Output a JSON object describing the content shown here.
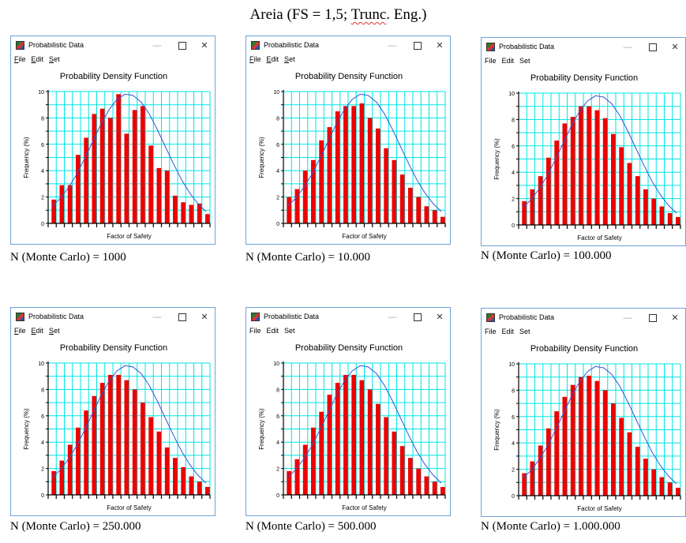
{
  "figure_title": "Areia (FS = 1,5; Trunc. Eng.)",
  "figure_title_prefix": "Areia (FS = 1,5; ",
  "figure_title_squiggle": "Trunc",
  "figure_title_suffix": ". Eng.)",
  "window": {
    "title": "Probabilistic Data",
    "menu": [
      "File",
      "Edit",
      "Set"
    ]
  },
  "colors": {
    "bar": "#ee0000",
    "grid": "#00e5e5",
    "curve": "#3355dd",
    "window_border": "#6fa3d8"
  },
  "chart_data": [
    {
      "type": "bar",
      "title": "Probability Density Function",
      "xlabel": "Factor of Safety",
      "ylabel": "Frequency (%)",
      "ylim": [
        0,
        10
      ],
      "yticks": [
        "0",
        "2",
        "4",
        "6",
        "8",
        "10"
      ],
      "values": [
        1.8,
        2.9,
        2.9,
        5.2,
        6.5,
        8.3,
        8.7,
        8.0,
        9.8,
        6.8,
        8.6,
        8.9,
        5.9,
        4.2,
        4.0,
        2.1,
        1.6,
        1.4,
        1.5,
        0.7
      ],
      "curve": [
        1.3,
        1.9,
        2.7,
        3.7,
        4.9,
        6.2,
        7.5,
        8.6,
        9.4,
        9.8,
        9.7,
        9.2,
        8.3,
        7.1,
        5.8,
        4.5,
        3.3,
        2.3,
        1.5,
        0.9
      ],
      "caption": "N (Monte Carlo) = 1000",
      "menu_underline": true
    },
    {
      "type": "bar",
      "title": "Probability Density Function",
      "xlabel": "Factor of Safety",
      "ylabel": "Frequency (%)",
      "ylim": [
        0,
        10
      ],
      "yticks": [
        "0",
        "2",
        "4",
        "6",
        "8",
        "10"
      ],
      "values": [
        2.0,
        2.6,
        4.0,
        4.8,
        6.3,
        7.3,
        8.5,
        8.9,
        8.9,
        9.1,
        8.0,
        7.2,
        5.7,
        4.8,
        3.7,
        2.7,
        2.0,
        1.3,
        1.0,
        0.5
      ],
      "curve": [
        1.3,
        1.9,
        2.7,
        3.7,
        4.9,
        6.2,
        7.5,
        8.6,
        9.4,
        9.8,
        9.7,
        9.2,
        8.3,
        7.1,
        5.8,
        4.5,
        3.3,
        2.3,
        1.5,
        0.9
      ],
      "caption": "N (Monte Carlo) = 10.000",
      "menu_underline": true
    },
    {
      "type": "bar",
      "title": "Probability Density Function",
      "xlabel": "Factor of Safety",
      "ylabel": "Frequency (%)",
      "ylim": [
        0,
        10
      ],
      "yticks": [
        "0",
        "2",
        "4",
        "6",
        "8",
        "10"
      ],
      "values": [
        1.8,
        2.7,
        3.7,
        5.1,
        6.4,
        7.7,
        8.2,
        9.0,
        9.0,
        8.7,
        8.1,
        6.9,
        5.9,
        4.7,
        3.7,
        2.7,
        2.0,
        1.4,
        0.9,
        0.6
      ],
      "curve": [
        1.3,
        1.9,
        2.7,
        3.7,
        4.9,
        6.2,
        7.5,
        8.6,
        9.4,
        9.8,
        9.7,
        9.2,
        8.3,
        7.1,
        5.8,
        4.5,
        3.3,
        2.3,
        1.5,
        0.9
      ],
      "caption": "N (Monte Carlo) = 100.000",
      "menu_underline": false
    },
    {
      "type": "bar",
      "title": "Probability Density Function",
      "xlabel": "Factor of Safety",
      "ylabel": "Frequency (%)",
      "ylim": [
        0,
        10
      ],
      "yticks": [
        "0",
        "2",
        "4",
        "6",
        "8",
        "10"
      ],
      "values": [
        1.8,
        2.6,
        3.8,
        5.1,
        6.4,
        7.5,
        8.5,
        9.1,
        9.1,
        8.7,
        8.0,
        7.0,
        5.9,
        4.8,
        3.6,
        2.8,
        2.1,
        1.4,
        1.0,
        0.6
      ],
      "curve": [
        1.3,
        1.9,
        2.7,
        3.7,
        4.9,
        6.2,
        7.5,
        8.6,
        9.4,
        9.8,
        9.7,
        9.2,
        8.3,
        7.1,
        5.8,
        4.5,
        3.3,
        2.3,
        1.5,
        0.9
      ],
      "caption": "N (Monte Carlo) = 250.000",
      "menu_underline": true
    },
    {
      "type": "bar",
      "title": "Probability Density Function",
      "xlabel": "Factor of Safety",
      "ylabel": "Frequency (%)",
      "ylim": [
        0,
        10
      ],
      "yticks": [
        "0",
        "2",
        "4",
        "6",
        "8",
        "10"
      ],
      "values": [
        1.8,
        2.7,
        3.8,
        5.1,
        6.3,
        7.6,
        8.5,
        9.1,
        9.1,
        8.7,
        8.0,
        6.9,
        5.9,
        4.8,
        3.7,
        2.8,
        2.0,
        1.4,
        1.0,
        0.6
      ],
      "curve": [
        1.3,
        1.9,
        2.7,
        3.7,
        4.9,
        6.2,
        7.5,
        8.6,
        9.4,
        9.8,
        9.7,
        9.2,
        8.3,
        7.1,
        5.8,
        4.5,
        3.3,
        2.3,
        1.5,
        0.9
      ],
      "caption": "N (Monte Carlo) = 500.000",
      "menu_underline": false
    },
    {
      "type": "bar",
      "title": "Probability Density Function",
      "xlabel": "Factor of Safety",
      "ylabel": "Frequency (%)",
      "ylim": [
        0,
        10
      ],
      "yticks": [
        "0",
        "2",
        "4",
        "6",
        "8",
        "10"
      ],
      "values": [
        1.7,
        2.6,
        3.8,
        5.1,
        6.4,
        7.5,
        8.4,
        9.0,
        9.1,
        8.7,
        8.0,
        7.0,
        5.9,
        4.8,
        3.7,
        2.8,
        2.0,
        1.4,
        1.0,
        0.6
      ],
      "curve": [
        1.3,
        1.9,
        2.7,
        3.7,
        4.9,
        6.2,
        7.5,
        8.6,
        9.4,
        9.8,
        9.7,
        9.2,
        8.3,
        7.1,
        5.8,
        4.5,
        3.3,
        2.3,
        1.5,
        0.9
      ],
      "caption": "N (Monte Carlo) = 1.000.000",
      "menu_underline": false
    }
  ]
}
